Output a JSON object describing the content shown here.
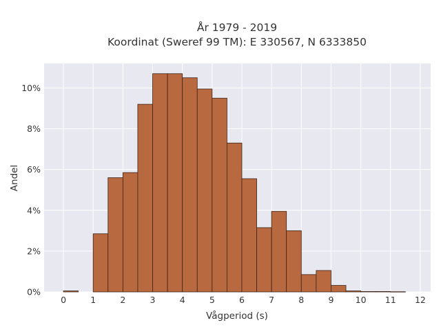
{
  "chart_data": {
    "type": "bar",
    "title_lines": [
      "År 1979 - 2019",
      "Koordinat (Sweref 99 TM): E 330567, N 6333850"
    ],
    "xlabel": "Vågperiod (s)",
    "ylabel": "Andel",
    "xlim": [
      -0.65,
      12.35
    ],
    "ylim": [
      0,
      11.2
    ],
    "x_ticks": [
      {
        "value": 0,
        "label": "0"
      },
      {
        "value": 1,
        "label": "1"
      },
      {
        "value": 2,
        "label": "2"
      },
      {
        "value": 3,
        "label": "3"
      },
      {
        "value": 4,
        "label": "4"
      },
      {
        "value": 5,
        "label": "5"
      },
      {
        "value": 6,
        "label": "6"
      },
      {
        "value": 7,
        "label": "7"
      },
      {
        "value": 8,
        "label": "8"
      },
      {
        "value": 9,
        "label": "9"
      },
      {
        "value": 10,
        "label": "10"
      },
      {
        "value": 11,
        "label": "11"
      },
      {
        "value": 12,
        "label": "12"
      }
    ],
    "y_ticks": [
      {
        "value": 0,
        "label": "0%"
      },
      {
        "value": 2,
        "label": "2%"
      },
      {
        "value": 4,
        "label": "4%"
      },
      {
        "value": 6,
        "label": "6%"
      },
      {
        "value": 8,
        "label": "8%"
      },
      {
        "value": 10,
        "label": "10%"
      }
    ],
    "bin_width": 0.5,
    "bins": [
      {
        "x0": 0.0,
        "value": 0.05
      },
      {
        "x0": 1.0,
        "value": 2.85
      },
      {
        "x0": 1.5,
        "value": 5.6
      },
      {
        "x0": 2.0,
        "value": 5.85
      },
      {
        "x0": 2.5,
        "value": 9.2
      },
      {
        "x0": 3.0,
        "value": 10.7
      },
      {
        "x0": 3.5,
        "value": 10.7
      },
      {
        "x0": 4.0,
        "value": 10.5
      },
      {
        "x0": 4.5,
        "value": 9.95
      },
      {
        "x0": 5.0,
        "value": 9.5
      },
      {
        "x0": 5.5,
        "value": 7.3
      },
      {
        "x0": 6.0,
        "value": 5.55
      },
      {
        "x0": 6.5,
        "value": 3.15
      },
      {
        "x0": 7.0,
        "value": 3.95
      },
      {
        "x0": 7.5,
        "value": 3.0
      },
      {
        "x0": 8.0,
        "value": 0.85
      },
      {
        "x0": 8.5,
        "value": 1.05
      },
      {
        "x0": 9.0,
        "value": 0.32
      },
      {
        "x0": 9.5,
        "value": 0.05
      },
      {
        "x0": 10.0,
        "value": 0.02
      },
      {
        "x0": 10.5,
        "value": 0.02
      },
      {
        "x0": 11.0,
        "value": 0.01
      }
    ],
    "grid": true,
    "legend": "none",
    "colors": {
      "bar_fill": "#b9693f",
      "bar_edge": "#3c2418",
      "plot_bg": "#e8e8f0",
      "grid": "#ffffff"
    }
  }
}
